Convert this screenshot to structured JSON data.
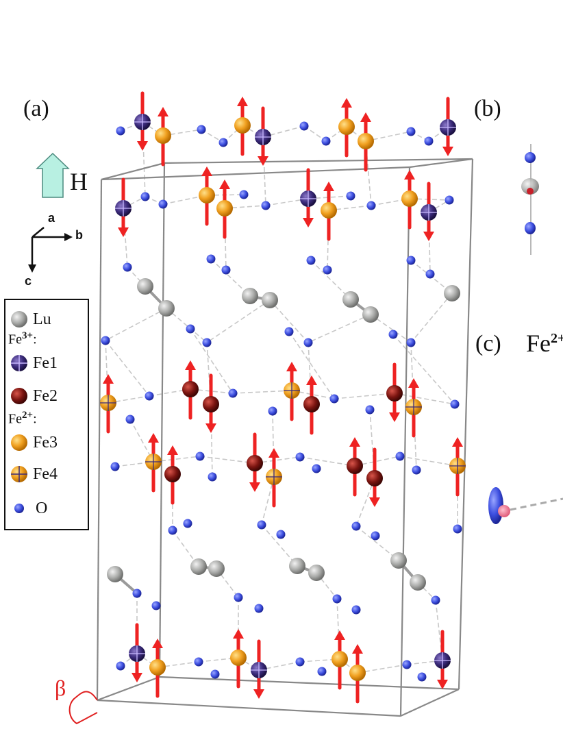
{
  "panels": {
    "a": "(a)",
    "b": "(b)",
    "c": "(c)"
  },
  "panel_c_title": {
    "base": "Fe",
    "sup": "2+"
  },
  "field": {
    "label": "H",
    "color": "#b8f0e2"
  },
  "axes": {
    "a": "a",
    "b": "b",
    "c": "c"
  },
  "angle_label": "β",
  "legend": {
    "items": [
      {
        "key": "lu",
        "label": "Lu",
        "icon": "grey-sphere"
      },
      {
        "key": "fe1",
        "label": "Fe1",
        "icon": "striped-navy-sphere"
      },
      {
        "key": "fe2",
        "label": "Fe2",
        "icon": "dark-red-sphere"
      },
      {
        "key": "fe3",
        "label": "Fe3",
        "icon": "orange-sphere"
      },
      {
        "key": "fe4",
        "label": "Fe4",
        "icon": "striped-orange-sphere"
      },
      {
        "key": "o",
        "label": "O",
        "icon": "blue-dot"
      }
    ],
    "fe3_header": {
      "base": "Fe",
      "sup": "3+",
      "tail": ":"
    },
    "fe2_header": {
      "base": "Fe",
      "sup": "2+",
      "tail": ":"
    }
  },
  "colors": {
    "lu": "#a9aaa8",
    "fe1": "#3a2a7a",
    "fe2": "#7a1410",
    "fe3": "#f0a020",
    "o": "#3d4fe0",
    "spin": "#ee2222",
    "cell": "#888888",
    "bond": "#c8c8c8"
  }
}
